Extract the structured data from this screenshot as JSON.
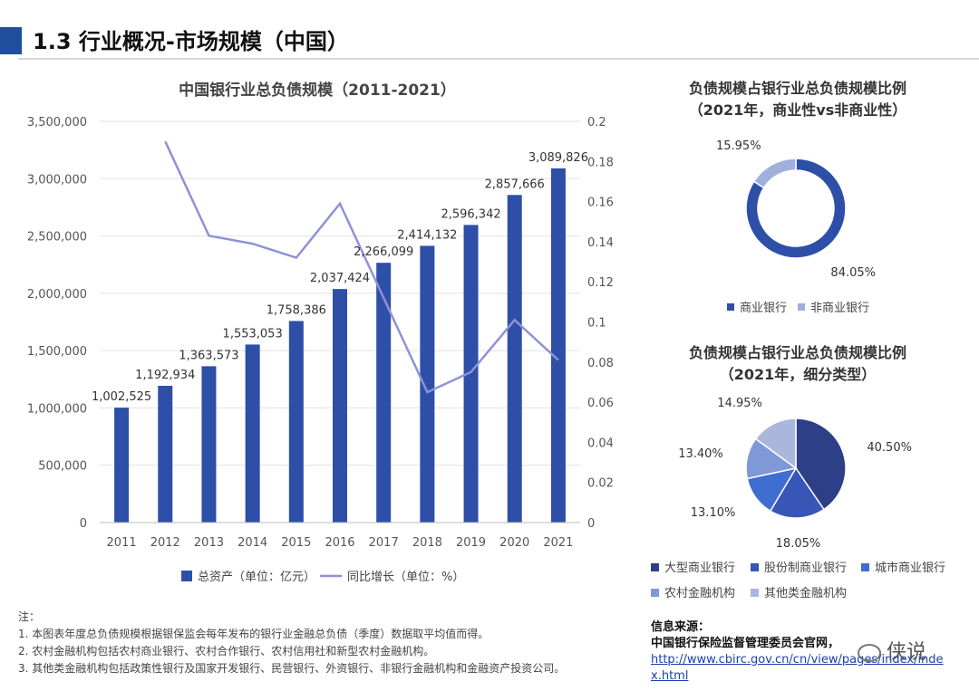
{
  "header": {
    "title": "1.3 行业概况-市场规模（中国）"
  },
  "chart_data": [
    {
      "type": "bar",
      "title": "中国银行业总负债规模（2011-2021）",
      "categories": [
        "2011",
        "2012",
        "2013",
        "2014",
        "2015",
        "2016",
        "2017",
        "2018",
        "2019",
        "2020",
        "2021"
      ],
      "series": [
        {
          "name": "总资产（单位：亿元）",
          "type": "bar",
          "axis": "left",
          "color": "#2e4fa8",
          "values": [
            1002525,
            1192934,
            1363573,
            1553053,
            1758386,
            2037424,
            2266099,
            2414132,
            2596342,
            2857666,
            3089826
          ],
          "labels": [
            "1,002,525",
            "1,192,934",
            "1,363,573",
            "1,553,053",
            "1,758,386",
            "2,037,424",
            "2,266,099",
            "2,414,132",
            "2,596,342",
            "2,857,666",
            "3,089,826"
          ]
        },
        {
          "name": "同比增长（单位：%）",
          "type": "line",
          "axis": "right",
          "color": "#8e92d6",
          "values": [
            null,
            0.19,
            0.143,
            0.139,
            0.132,
            0.159,
            0.112,
            0.065,
            0.075,
            0.101,
            0.081
          ]
        }
      ],
      "y_left": {
        "ylim": [
          0,
          3500000
        ],
        "ticks": [
          "0",
          "500,000",
          "1,000,000",
          "1,500,000",
          "2,000,000",
          "2,500,000",
          "3,000,000",
          "3,500,000"
        ]
      },
      "y_right": {
        "ylim": [
          0,
          0.2
        ],
        "ticks": [
          "0",
          "0.02",
          "0.04",
          "0.06",
          "0.08",
          "0.1",
          "0.12",
          "0.14",
          "0.16",
          "0.18",
          "0.2"
        ]
      },
      "legend_position": "bottom"
    },
    {
      "type": "pie",
      "title": "负债规模占银行业总负债规模比例",
      "subtitle": "（2021年，商业性vs非商业性）",
      "style": "donut",
      "slices": [
        {
          "name": "商业银行",
          "value": 84.05,
          "label": "84.05%",
          "color": "#2e4fa8"
        },
        {
          "name": "非商业银行",
          "value": 15.95,
          "label": "15.95%",
          "color": "#9fb0dc"
        }
      ],
      "legend_position": "bottom"
    },
    {
      "type": "pie",
      "title": "负债规模占银行业总负债规模比例",
      "subtitle": "（2021年，细分类型）",
      "slices": [
        {
          "name": "大型商业银行",
          "value": 40.5,
          "label": "40.50%",
          "color": "#2d3f86"
        },
        {
          "name": "股份制商业银行",
          "value": 18.05,
          "label": "18.05%",
          "color": "#3756b8"
        },
        {
          "name": "城市商业银行",
          "value": 13.1,
          "label": "13.10%",
          "color": "#3f6ed0"
        },
        {
          "name": "农村金融机构",
          "value": 13.4,
          "label": "13.40%",
          "color": "#7f98d6"
        },
        {
          "name": "其他类金融机构",
          "value": 14.95,
          "label": "14.95%",
          "color": "#aab6dc"
        }
      ],
      "legend_position": "bottom"
    }
  ],
  "notes": {
    "heading": "注：",
    "lines": [
      "1.  本图表年度总负债规模根据银保监会每年发布的银行业金融总负债（季度）数据取平均值而得。",
      "2.  农村金融机构包括农村商业银行、农村合作银行、农村信用社和新型农村金融机构。",
      "3.  其他类金融机构包括政策性银行及国家开发银行、民营银行、外资银行、非银行金融机构和金融资产投资公司。"
    ]
  },
  "source": {
    "label": "信息来源：",
    "org": "中国银行保险监督管理委员会官网，",
    "url": "http://www.cbirc.gov.cn/cn/view/pages/index/index.html"
  },
  "brand": {
    "name": "侠说"
  }
}
